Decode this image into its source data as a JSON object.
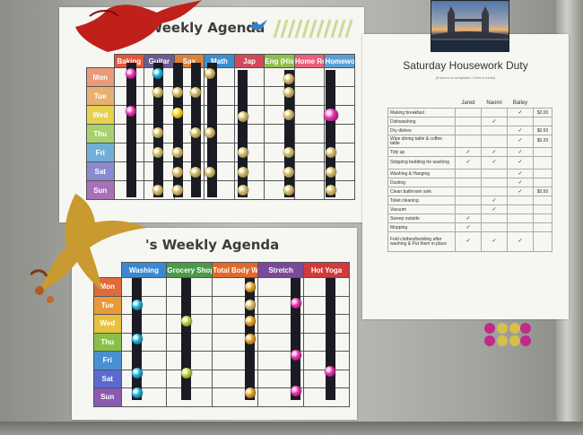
{
  "agenda_top": {
    "title": "'s Weekly Agenda",
    "columns": [
      {
        "label": "Baking",
        "color": "#e4573b"
      },
      {
        "label": "Guitar",
        "color": "#6b5b8f"
      },
      {
        "label": "Sax",
        "color": "#d9823a"
      },
      {
        "label": "Math",
        "color": "#3a8fd0"
      },
      {
        "label": "Jap",
        "color": "#d04a5a"
      },
      {
        "label": "Eng (Hist/Geo)",
        "color": "#8fbf4a"
      },
      {
        "label": "Home Reading",
        "color": "#e8607a"
      },
      {
        "label": "Homework",
        "color": "#5aa0d8"
      }
    ],
    "days": [
      {
        "label": "Mon",
        "color": "#e89a7a"
      },
      {
        "label": "Tue",
        "color": "#e8b070"
      },
      {
        "label": "Wed",
        "color": "#e8d050"
      },
      {
        "label": "Thu",
        "color": "#a8d070"
      },
      {
        "label": "Fri",
        "color": "#70b0d8"
      },
      {
        "label": "Sat",
        "color": "#8a8ad0"
      },
      {
        "label": "Sun",
        "color": "#a870b8"
      }
    ]
  },
  "agenda_bottom": {
    "title": "'s Weekly Agenda",
    "columns": [
      {
        "label": "Washing",
        "color": "#3a88d0"
      },
      {
        "label": "Grocery Shopping",
        "color": "#4a9a4a"
      },
      {
        "label": "Total Body Workout",
        "color": "#e06a2a"
      },
      {
        "label": "Stretch",
        "color": "#7a4a9a"
      },
      {
        "label": "Hot Yoga",
        "color": "#d03a3a"
      }
    ],
    "days": [
      {
        "label": "Mon",
        "color": "#e06a3a"
      },
      {
        "label": "Tue",
        "color": "#e89a3a"
      },
      {
        "label": "Wed",
        "color": "#e8c040"
      },
      {
        "label": "Thu",
        "color": "#8ac04a"
      },
      {
        "label": "Fri",
        "color": "#4a90d0"
      },
      {
        "label": "Sat",
        "color": "#5a6ad0"
      },
      {
        "label": "Sun",
        "color": "#8a5ab0"
      }
    ]
  },
  "housework": {
    "title": "Saturday Housework Duty",
    "subtitle": "(if bacon is completed, it this is funds)",
    "people": [
      "Jared",
      "Naomi",
      "Bailey"
    ],
    "tasks": [
      {
        "name": "Making breakfast",
        "checks": [
          "",
          "",
          "✓"
        ],
        "pay": "$2.00"
      },
      {
        "name": "Dishwashing",
        "checks": [
          "",
          "✓",
          ""
        ],
        "pay": ""
      },
      {
        "name": "Dry dishes",
        "checks": [
          "",
          "",
          "✓"
        ],
        "pay": "$0.50"
      },
      {
        "name": "Wipe dining table & coffee table",
        "checks": [
          "",
          "",
          "✓"
        ],
        "pay": "$0.20"
      },
      {
        "name": "Tidy up",
        "checks": [
          "✓",
          "✓",
          "✓"
        ],
        "pay": ""
      },
      {
        "name": "Stripping bedding for washing",
        "checks": [
          "✓",
          "✓",
          "✓"
        ],
        "pay": ""
      },
      {
        "name": "Washing & Hanging",
        "checks": [
          "",
          "",
          "✓"
        ],
        "pay": ""
      },
      {
        "name": "Dusting",
        "checks": [
          "",
          "",
          "✓"
        ],
        "pay": ""
      },
      {
        "name": "Clean bathroom sink",
        "checks": [
          "",
          "",
          "✓"
        ],
        "pay": "$0.50"
      },
      {
        "name": "Toilet cleaning",
        "checks": [
          "",
          "✓",
          ""
        ],
        "pay": ""
      },
      {
        "name": "Vacuum",
        "checks": [
          "",
          "✓",
          ""
        ],
        "pay": ""
      },
      {
        "name": "Sweep outside",
        "checks": [
          "✓",
          "",
          ""
        ],
        "pay": ""
      },
      {
        "name": "Mopping",
        "checks": [
          "✓",
          "",
          ""
        ],
        "pay": ""
      },
      {
        "name": "Fold clothes/bedding after washing & Put them in place",
        "checks": [
          "✓",
          "✓",
          "✓"
        ],
        "pay": ""
      }
    ]
  }
}
